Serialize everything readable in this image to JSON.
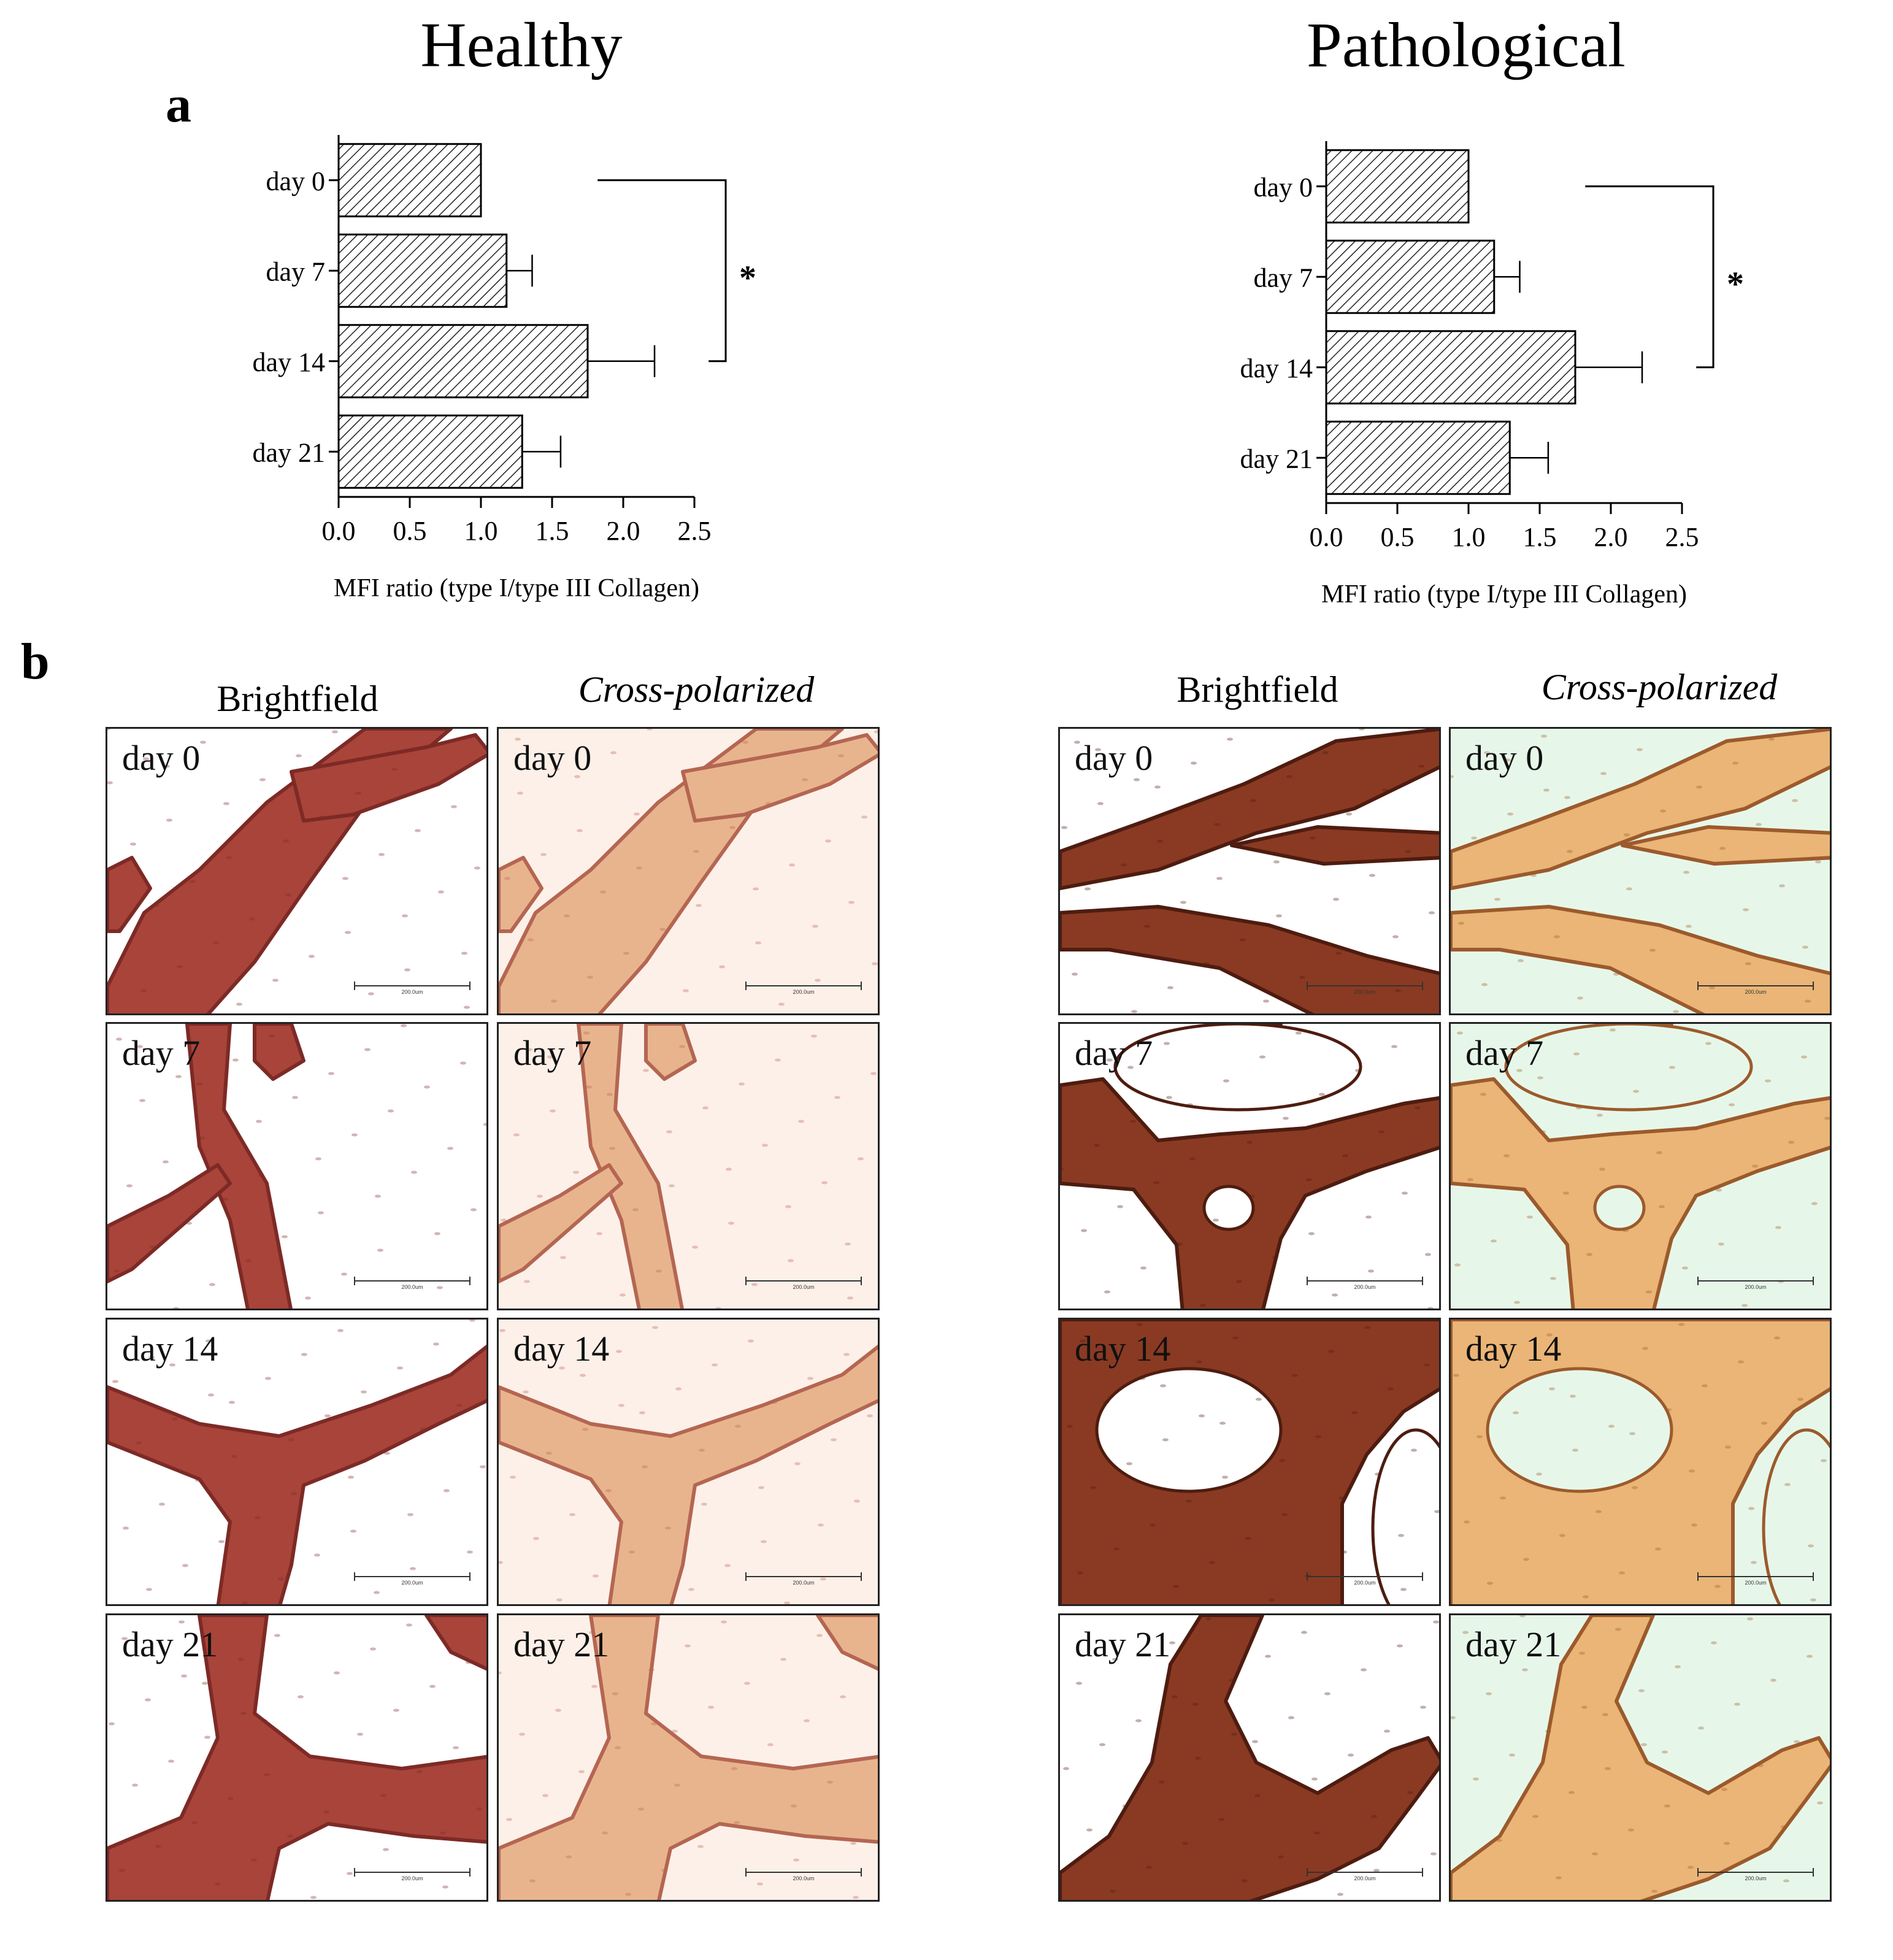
{
  "titles": {
    "healthy": "Healthy",
    "pathological": "Pathological"
  },
  "panel_letters": {
    "a": "a",
    "b": "b"
  },
  "chart_data": [
    {
      "type": "bar",
      "orientation": "horizontal",
      "group": "Healthy",
      "categories": [
        "day 0",
        "day 7",
        "day 14",
        "day 21"
      ],
      "values": [
        1.0,
        1.18,
        1.75,
        1.29
      ],
      "error": [
        0,
        0.18,
        0.47,
        0.27
      ],
      "xlabel": "MFI ratio (type I/type III Collagen)",
      "xlim": [
        0,
        2.5
      ],
      "xticks": [
        "0.0",
        "0.5",
        "1.0",
        "1.5",
        "2.0",
        "2.5"
      ],
      "significance": {
        "from": "day 0",
        "to": "day 14",
        "label": "*"
      },
      "bar_fill": "hatched",
      "grid": false
    },
    {
      "type": "bar",
      "orientation": "horizontal",
      "group": "Pathological",
      "categories": [
        "day 0",
        "day 7",
        "day 14",
        "day 21"
      ],
      "values": [
        1.0,
        1.18,
        1.75,
        1.29
      ],
      "error": [
        0,
        0.18,
        0.47,
        0.27
      ],
      "xlabel": "MFI ratio (type I/type III Collagen)",
      "xlim": [
        0,
        2.5
      ],
      "xticks": [
        "0.0",
        "0.5",
        "1.0",
        "1.5",
        "2.0",
        "2.5"
      ],
      "significance": {
        "from": "day 0",
        "to": "day 14",
        "label": "*"
      },
      "bar_fill": "hatched",
      "grid": false
    }
  ],
  "micrographs": {
    "column_headers": {
      "healthy_bright": "Brightfield",
      "healthy_polar": "Cross-polarized",
      "patho_bright": "Brightfield",
      "patho_polar": "Cross-polarized"
    },
    "days": [
      "day 0",
      "day 7",
      "day 14",
      "day 21"
    ],
    "scale_bar": "200.0um",
    "colors": {
      "healthy_bright_bg": "#ffffff",
      "healthy_polar_bg": "#fdf0e8",
      "patho_bright_bg": "#ffffff",
      "patho_polar_bg": "#e6f7e9",
      "tissue_bright": "#a8443a",
      "tissue_polar": "#e8b48e",
      "tissue_patho_dark": "#8a3a22",
      "tissue_patho_polar": "#eab577"
    }
  }
}
